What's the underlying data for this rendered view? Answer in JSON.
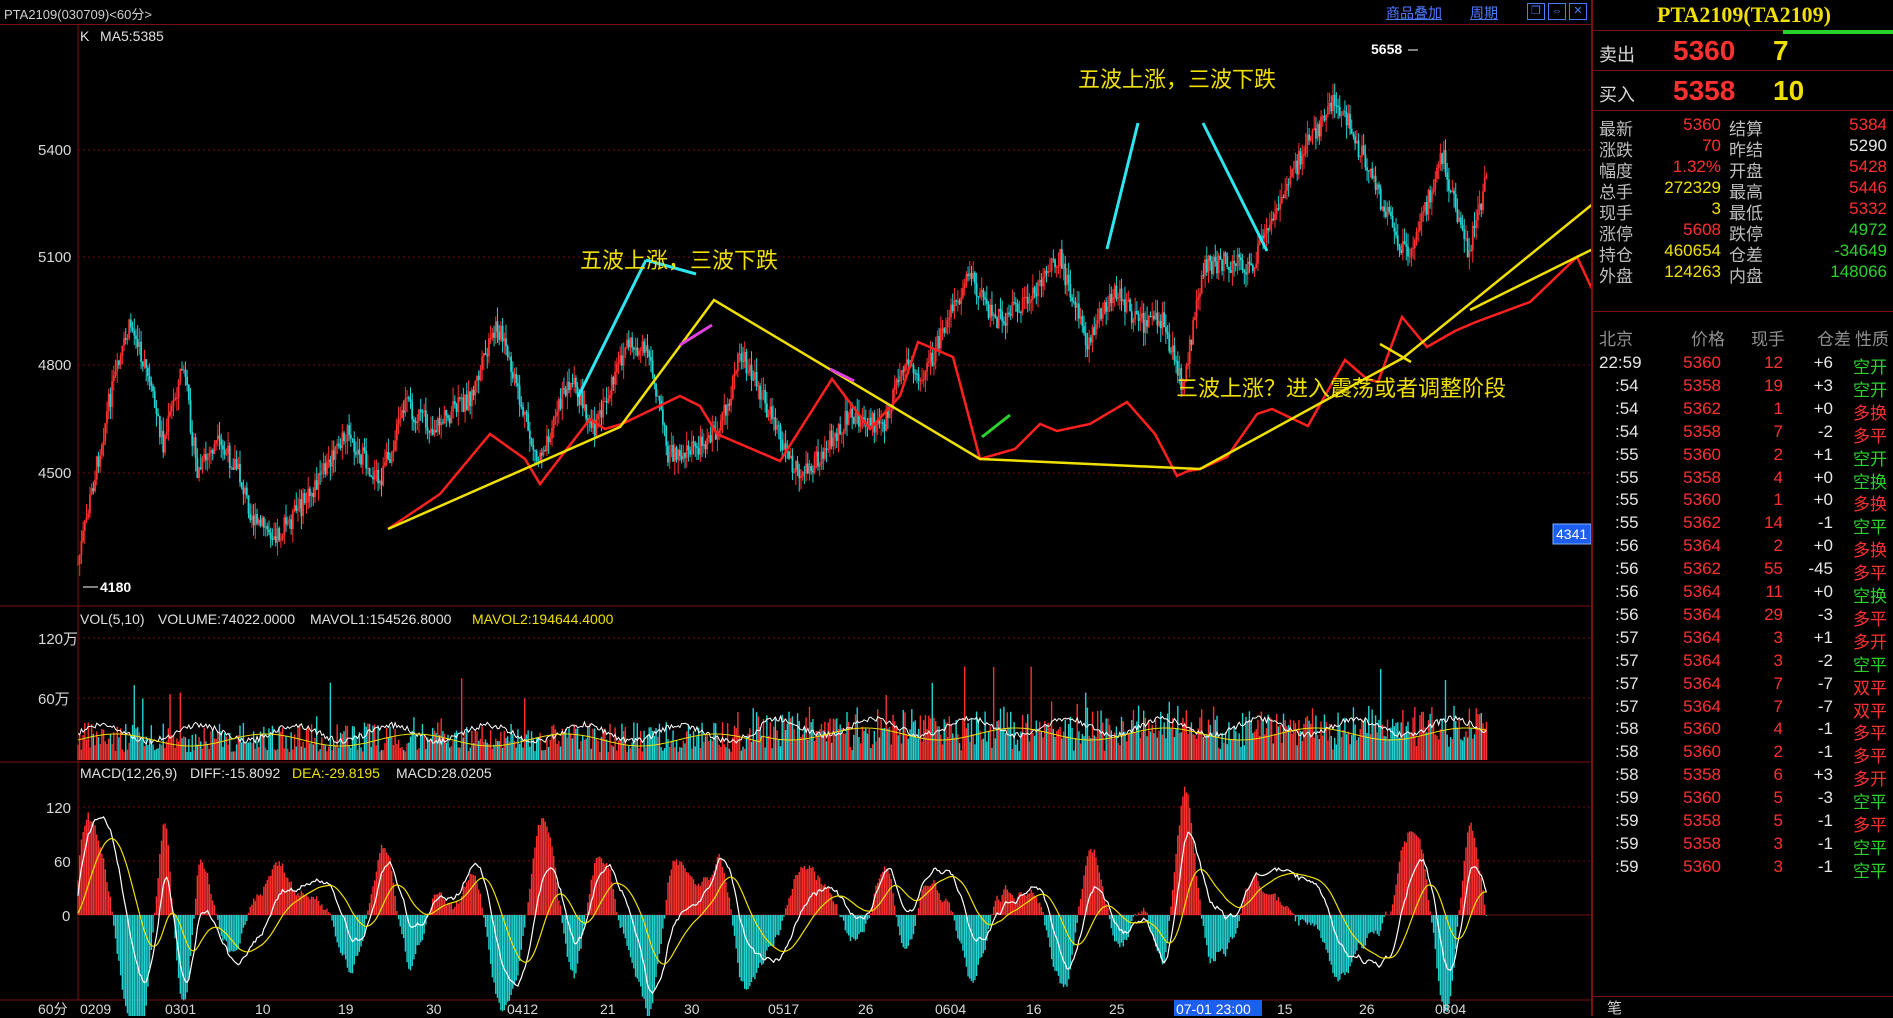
{
  "window": {
    "title": "PTA2109(030709)<60分>",
    "links": [
      "商品叠加",
      "周期"
    ],
    "window_buttons": [
      "restore-icon",
      "maximize-icon",
      "close-icon"
    ]
  },
  "main_chart": {
    "indicator_label": "K",
    "ma_label": "MA5:5385",
    "price_ticks": [
      "5400",
      "5100",
      "4800",
      "4500"
    ],
    "high_marker": "5658",
    "low_marker": "4180",
    "current_price_tag": "4341",
    "annotations": [
      "五波上涨，三波下跌",
      "五波上涨，三波下跌",
      "三波上涨？进入震荡或者调整阶段"
    ]
  },
  "volume_panel": {
    "legend": {
      "name": "VOL(5,10)",
      "volume": "VOLUME:74022.0000",
      "mavol1": "MAVOL1:154526.8000",
      "mavol2": "MAVOL2:194644.4000"
    },
    "ticks": [
      "120万",
      "60万"
    ]
  },
  "macd_panel": {
    "legend": {
      "name": "MACD(12,26,9)",
      "diff": "DIFF:-15.8092",
      "dea": "DEA:-29.8195",
      "macd": "MACD:28.0205"
    },
    "ticks": [
      "120",
      "60",
      "0"
    ]
  },
  "time_axis": {
    "period_label": "60分",
    "labels": [
      "0209",
      "0301",
      "10",
      "19",
      "30",
      "0412",
      "21",
      "30",
      "0517",
      "26",
      "0604",
      "16",
      "25",
      "07-01 23:00",
      "15",
      "26",
      "0804"
    ],
    "cursor_label": "07-01 23:00"
  },
  "quote": {
    "title": "PTA2109(TA2109)",
    "ask": {
      "label": "卖出",
      "price": "5360",
      "volume": "7"
    },
    "bid": {
      "label": "买入",
      "price": "5358",
      "volume": "10"
    },
    "stats_left": [
      {
        "label": "最新",
        "value": "5360"
      },
      {
        "label": "涨跌",
        "value": "70"
      },
      {
        "label": "幅度",
        "value": "1.32%"
      },
      {
        "label": "总手",
        "value": "272329"
      },
      {
        "label": "现手",
        "value": "3"
      },
      {
        "label": "涨停",
        "value": "5608"
      },
      {
        "label": "持仓",
        "value": "460654"
      },
      {
        "label": "外盘",
        "value": "124263"
      }
    ],
    "stats_right": [
      {
        "label": "结算",
        "value": "5384"
      },
      {
        "label": "昨结",
        "value": "5290"
      },
      {
        "label": "开盘",
        "value": "5428"
      },
      {
        "label": "最高",
        "value": "5446"
      },
      {
        "label": "最低",
        "value": "5332"
      },
      {
        "label": "跌停",
        "value": "4972"
      },
      {
        "label": "仓差",
        "value": "-34649"
      },
      {
        "label": "内盘",
        "value": "148066"
      }
    ],
    "ticks_header": [
      "北京",
      "价格",
      "现手",
      "仓差",
      "性质"
    ],
    "ticks": [
      {
        "time": "22:59",
        "price": "5360",
        "vol": "12",
        "oi": "+6",
        "type": "空开"
      },
      {
        "time": ":54",
        "price": "5358",
        "vol": "19",
        "oi": "+3",
        "type": "空开"
      },
      {
        "time": ":54",
        "price": "5362",
        "vol": "1",
        "oi": "+0",
        "type": "多换"
      },
      {
        "time": ":54",
        "price": "5358",
        "vol": "7",
        "oi": "-2",
        "type": "多平"
      },
      {
        "time": ":55",
        "price": "5360",
        "vol": "2",
        "oi": "+1",
        "type": "空开"
      },
      {
        "time": ":55",
        "price": "5358",
        "vol": "4",
        "oi": "+0",
        "type": "空换"
      },
      {
        "time": ":55",
        "price": "5360",
        "vol": "1",
        "oi": "+0",
        "type": "多换"
      },
      {
        "time": ":55",
        "price": "5362",
        "vol": "14",
        "oi": "-1",
        "type": "空平"
      },
      {
        "time": ":56",
        "price": "5364",
        "vol": "2",
        "oi": "+0",
        "type": "多换"
      },
      {
        "time": ":56",
        "price": "5362",
        "vol": "55",
        "oi": "-45",
        "type": "多平"
      },
      {
        "time": ":56",
        "price": "5364",
        "vol": "11",
        "oi": "+0",
        "type": "空换"
      },
      {
        "time": ":56",
        "price": "5364",
        "vol": "29",
        "oi": "-3",
        "type": "多平"
      },
      {
        "time": ":57",
        "price": "5364",
        "vol": "3",
        "oi": "+1",
        "type": "多开"
      },
      {
        "time": ":57",
        "price": "5364",
        "vol": "3",
        "oi": "-2",
        "type": "空平"
      },
      {
        "time": ":57",
        "price": "5364",
        "vol": "7",
        "oi": "-7",
        "type": "双平"
      },
      {
        "time": ":57",
        "price": "5364",
        "vol": "7",
        "oi": "-7",
        "type": "双平"
      },
      {
        "time": ":58",
        "price": "5360",
        "vol": "4",
        "oi": "-1",
        "type": "多平"
      },
      {
        "time": ":58",
        "price": "5360",
        "vol": "2",
        "oi": "-1",
        "type": "多平"
      },
      {
        "time": ":58",
        "price": "5358",
        "vol": "6",
        "oi": "+3",
        "type": "多开"
      },
      {
        "time": ":59",
        "price": "5360",
        "vol": "5",
        "oi": "-3",
        "type": "空平"
      },
      {
        "time": ":59",
        "price": "5358",
        "vol": "5",
        "oi": "-1",
        "type": "多平"
      },
      {
        "time": ":59",
        "price": "5358",
        "vol": "3",
        "oi": "-1",
        "type": "空平"
      },
      {
        "time": ":59",
        "price": "5360",
        "vol": "3",
        "oi": "-1",
        "type": "空平"
      }
    ],
    "bottom_tab": "笔"
  },
  "colors": {
    "up": "#ff3030",
    "down": "#22d3d3",
    "wave_line": "#f0e000",
    "wave_cyan": "#2ee6f0",
    "grid": "#6e0c0c"
  }
}
